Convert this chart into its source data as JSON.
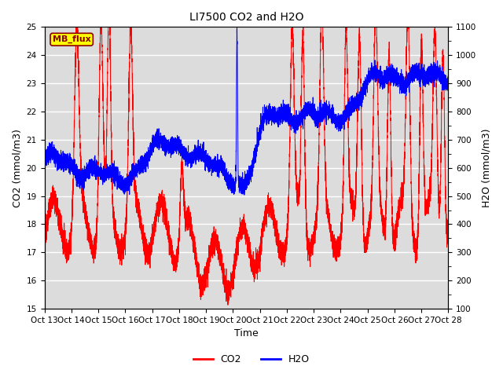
{
  "title": "LI7500 CO2 and H2O",
  "xlabel": "Time",
  "ylabel_left": "CO2 (mmol/m3)",
  "ylabel_right": "H2O (mmol/m3)",
  "xlim": [
    0,
    15
  ],
  "ylim_left": [
    15.0,
    25.0
  ],
  "ylim_right": [
    100,
    1100
  ],
  "xtick_labels": [
    "Oct 13",
    "Oct 14",
    "Oct 15",
    "Oct 16",
    "Oct 17",
    "Oct 18",
    "Oct 19",
    "Oct 20",
    "Oct 21",
    "Oct 22",
    "Oct 23",
    "Oct 24",
    "Oct 25",
    "Oct 26",
    "Oct 27",
    "Oct 28"
  ],
  "yticks_left": [
    15.0,
    16.0,
    17.0,
    18.0,
    19.0,
    20.0,
    21.0,
    22.0,
    23.0,
    24.0,
    25.0
  ],
  "yticks_right": [
    100,
    200,
    300,
    400,
    500,
    600,
    700,
    800,
    900,
    1000,
    1100
  ],
  "color_co2": "#FF0000",
  "color_h2o": "#0000FF",
  "annotation_text": "MB_flux",
  "plot_bg_color": "#DCDCDC",
  "grid_color": "#FFFFFF",
  "linewidth_co2": 0.7,
  "linewidth_h2o": 0.7,
  "title_fontsize": 10,
  "axis_label_fontsize": 9,
  "tick_fontsize": 7.5,
  "legend_fontsize": 9
}
